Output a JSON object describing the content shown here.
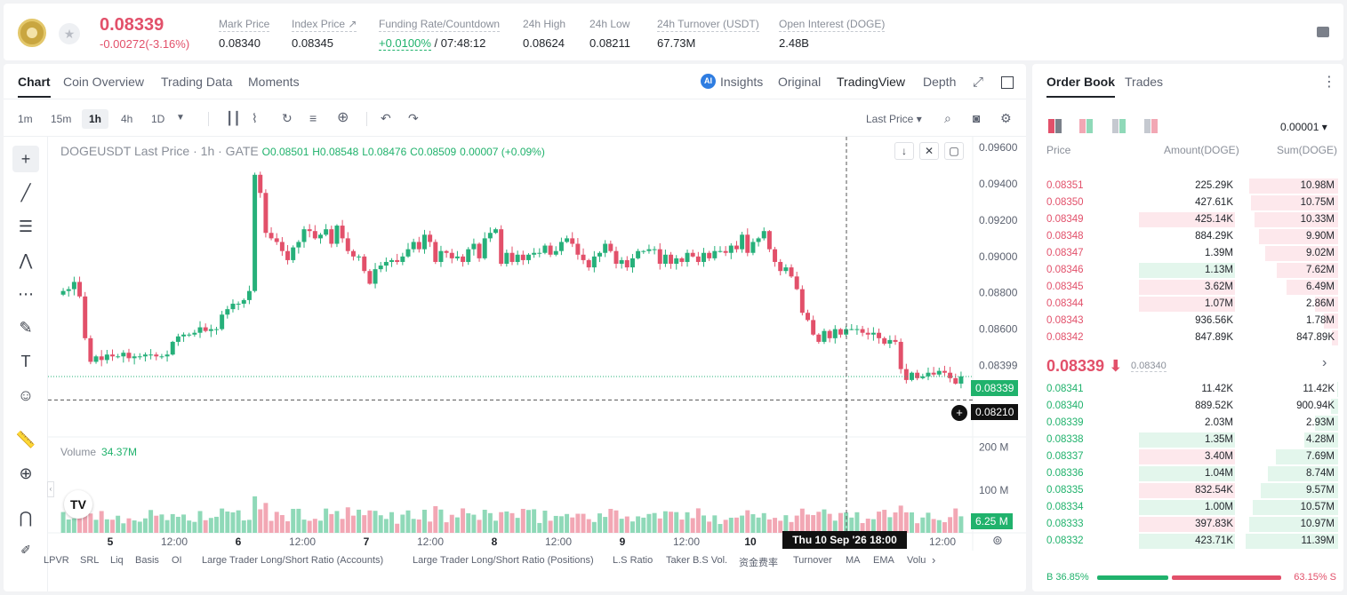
{
  "header": {
    "last_price": "0.08339",
    "change": "-0.00272(-3.16%)",
    "stats": [
      {
        "label": "Mark Price",
        "value": "0.08340"
      },
      {
        "label": "Index Price ↗",
        "value": "0.08345"
      },
      {
        "label": "Funding Rate/Countdown",
        "value_green": "+0.0100%",
        "value": "/ 07:48:12"
      },
      {
        "label": "24h High",
        "value": "0.08624"
      },
      {
        "label": "24h Low",
        "value": "0.08211"
      },
      {
        "label": "24h Turnover (USDT)",
        "value": "67.73M"
      },
      {
        "label": "Open Interest (DOGE)",
        "value": "2.48B"
      }
    ]
  },
  "chart_tabs": {
    "chart": "Chart",
    "coin_overview": "Coin Overview",
    "trading_data": "Trading Data",
    "moments": "Moments"
  },
  "view_tabs": {
    "insights": "Insights",
    "original": "Original",
    "tradingview": "TradingView",
    "depth": "Depth",
    "ai": "AI"
  },
  "toolbar": {
    "intervals": [
      "1m",
      "15m",
      "1h",
      "4h",
      "1D"
    ],
    "selected": "1h",
    "price_type": "Last Price"
  },
  "legend": {
    "symbol": "DOGEUSDT Last Price · 1h · GATE",
    "ohlc": {
      "o": "O0.08501",
      "h": "H0.08548",
      "l": "L0.08476",
      "c": "C0.08509",
      "chg": "0.00007 (+0.09%)"
    }
  },
  "volume_legend": {
    "label": "Volume",
    "value": "34.37M"
  },
  "tradingview_logo": "TV",
  "price_labels": {
    "last": "0.08339",
    "cursor": "0.08210",
    "vol": "6.25 M"
  },
  "crosshair_time": "Thu 10 Sep '26   18:00",
  "indicators": [
    "LPVR",
    "SRL",
    "Liq",
    "Basis",
    "OI",
    "Large Trader Long/Short Ratio (Accounts)",
    "Large Trader Long/Short Ratio (Positions)",
    "L.S Ratio",
    "Taker B.S Vol.",
    "资金费率",
    "Turnover",
    "MA",
    "EMA",
    "Volu"
  ],
  "colors": {
    "up": "#26b07a",
    "down": "#e2506a",
    "up_vol": "#8fd9b8",
    "down_vol": "#f2a7b4"
  },
  "chart_data": {
    "type": "candlestick",
    "title": "DOGEUSDT Last Price · 1h · GATE",
    "y_ticks": [
      "0.09600",
      "0.09400",
      "0.09200",
      "0.09000",
      "0.08800",
      "0.08600",
      "0.08399"
    ],
    "ylim": [
      0.0807,
      0.0963
    ],
    "vol_ticks": [
      "200 M",
      "100 M"
    ],
    "vol_max": 220,
    "x_ticks": [
      "5",
      "12:00",
      "6",
      "12:00",
      "7",
      "12:00",
      "8",
      "12:00",
      "9",
      "12:00",
      "10",
      "12:00"
    ],
    "closes": [
      0.0881,
      0.0882,
      0.0886,
      0.0878,
      0.0855,
      0.0842,
      0.0845,
      0.0843,
      0.0846,
      0.0845,
      0.0845,
      0.0847,
      0.0844,
      0.0845,
      0.0845,
      0.0846,
      0.0846,
      0.0845,
      0.0845,
      0.0846,
      0.0853,
      0.0856,
      0.0857,
      0.0857,
      0.0858,
      0.0861,
      0.0859,
      0.086,
      0.086,
      0.0868,
      0.0871,
      0.0874,
      0.0874,
      0.0876,
      0.0881,
      0.0945,
      0.0935,
      0.0913,
      0.091,
      0.0908,
      0.0903,
      0.0898,
      0.0905,
      0.0908,
      0.0915,
      0.0914,
      0.091,
      0.0912,
      0.0915,
      0.0907,
      0.0917,
      0.091,
      0.0903,
      0.09,
      0.09,
      0.0892,
      0.0885,
      0.0893,
      0.0895,
      0.0897,
      0.0898,
      0.0897,
      0.09,
      0.0904,
      0.0908,
      0.0904,
      0.0912,
      0.0908,
      0.0897,
      0.0903,
      0.0902,
      0.0899,
      0.09,
      0.0897,
      0.0904,
      0.0907,
      0.0899,
      0.091,
      0.0913,
      0.0915,
      0.0896,
      0.0902,
      0.0897,
      0.0901,
      0.0898,
      0.0901,
      0.0902,
      0.0902,
      0.0906,
      0.0901,
      0.0903,
      0.0908,
      0.091,
      0.0907,
      0.0901,
      0.0898,
      0.0894,
      0.09,
      0.0902,
      0.0907,
      0.0903,
      0.0896,
      0.0898,
      0.0894,
      0.0899,
      0.0903,
      0.0903,
      0.0904,
      0.0904,
      0.0896,
      0.0901,
      0.0896,
      0.0899,
      0.0897,
      0.0902,
      0.09,
      0.0897,
      0.0902,
      0.0899,
      0.0903,
      0.0903,
      0.0902,
      0.0906,
      0.0904,
      0.0912,
      0.0902,
      0.0908,
      0.091,
      0.0914,
      0.0904,
      0.0897,
      0.0892,
      0.0894,
      0.0889,
      0.0882,
      0.0869,
      0.0865,
      0.0857,
      0.0853,
      0.0859,
      0.0855,
      0.086,
      0.0857,
      0.086,
      0.086,
      0.086,
      0.0858,
      0.0857,
      0.0858,
      0.0855,
      0.0852,
      0.0854,
      0.0853,
      0.0838,
      0.0832,
      0.0836,
      0.0833,
      0.0834,
      0.0836,
      0.0835,
      0.0837,
      0.0836,
      0.0833,
      0.083,
      0.0834
    ]
  },
  "orderbook": {
    "tabs": [
      "Order Book",
      "Trades"
    ],
    "precision": "0.00001",
    "headers": {
      "price": "Price",
      "amount": "Amount(DOGE)",
      "sum": "Sum(DOGE)"
    },
    "asks": [
      {
        "price": "0.08351",
        "amount": "225.29K",
        "sum": "10.98M",
        "depth": 0.96,
        "amt": 0
      },
      {
        "price": "0.08350",
        "amount": "427.61K",
        "sum": "10.75M",
        "depth": 0.94,
        "amt": 0
      },
      {
        "price": "0.08349",
        "amount": "425.14K",
        "sum": "10.33M",
        "depth": 0.9,
        "amt": 0.48
      },
      {
        "price": "0.08348",
        "amount": "884.29K",
        "sum": "9.90M",
        "depth": 0.86,
        "amt": 0
      },
      {
        "price": "0.08347",
        "amount": "1.39M",
        "sum": "9.02M",
        "depth": 0.79,
        "amt": 0
      },
      {
        "price": "0.08346",
        "amount": "1.13M",
        "sum": "7.62M",
        "depth": 0.66,
        "amt": 0.48,
        "amtgreen": true
      },
      {
        "price": "0.08345",
        "amount": "3.62M",
        "sum": "6.49M",
        "depth": 0.56,
        "amt": 0.48
      },
      {
        "price": "0.08344",
        "amount": "1.07M",
        "sum": "2.86M",
        "depth": 0.25,
        "amt": 0.48
      },
      {
        "price": "0.08343",
        "amount": "936.56K",
        "sum": "1.78M",
        "depth": 0.15,
        "amt": 0
      },
      {
        "price": "0.08342",
        "amount": "847.89K",
        "sum": "847.89K",
        "depth": 0.07,
        "amt": 0
      }
    ],
    "mid": {
      "price": "0.08339 ⬇",
      "mark": "0.08340"
    },
    "bids": [
      {
        "price": "0.08341",
        "amount": "11.42K",
        "sum": "11.42K",
        "depth": 0.01,
        "amt": 0
      },
      {
        "price": "0.08340",
        "amount": "889.52K",
        "sum": "900.94K",
        "depth": 0.08,
        "amt": 0
      },
      {
        "price": "0.08339",
        "amount": "2.03M",
        "sum": "2.93M",
        "depth": 0.25,
        "amt": 0
      },
      {
        "price": "0.08338",
        "amount": "1.35M",
        "sum": "4.28M",
        "depth": 0.37,
        "amt": 0.48
      },
      {
        "price": "0.08337",
        "amount": "3.40M",
        "sum": "7.69M",
        "depth": 0.67,
        "amt": 0.48,
        "amtred": true
      },
      {
        "price": "0.08336",
        "amount": "1.04M",
        "sum": "8.74M",
        "depth": 0.76,
        "amt": 0.48
      },
      {
        "price": "0.08335",
        "amount": "832.54K",
        "sum": "9.57M",
        "depth": 0.84,
        "amt": 0.48,
        "amtred": true
      },
      {
        "price": "0.08334",
        "amount": "1.00M",
        "sum": "10.57M",
        "depth": 0.92,
        "amt": 0.48
      },
      {
        "price": "0.08333",
        "amount": "397.83K",
        "sum": "10.97M",
        "depth": 0.96,
        "amt": 0.48,
        "amtred": true
      },
      {
        "price": "0.08332",
        "amount": "423.71K",
        "sum": "11.39M",
        "depth": 1.0,
        "amt": 0.48
      }
    ],
    "ratio": {
      "buy": "B  36.85%",
      "sell": "63.15%  S",
      "buy_frac": 0.3685
    }
  }
}
